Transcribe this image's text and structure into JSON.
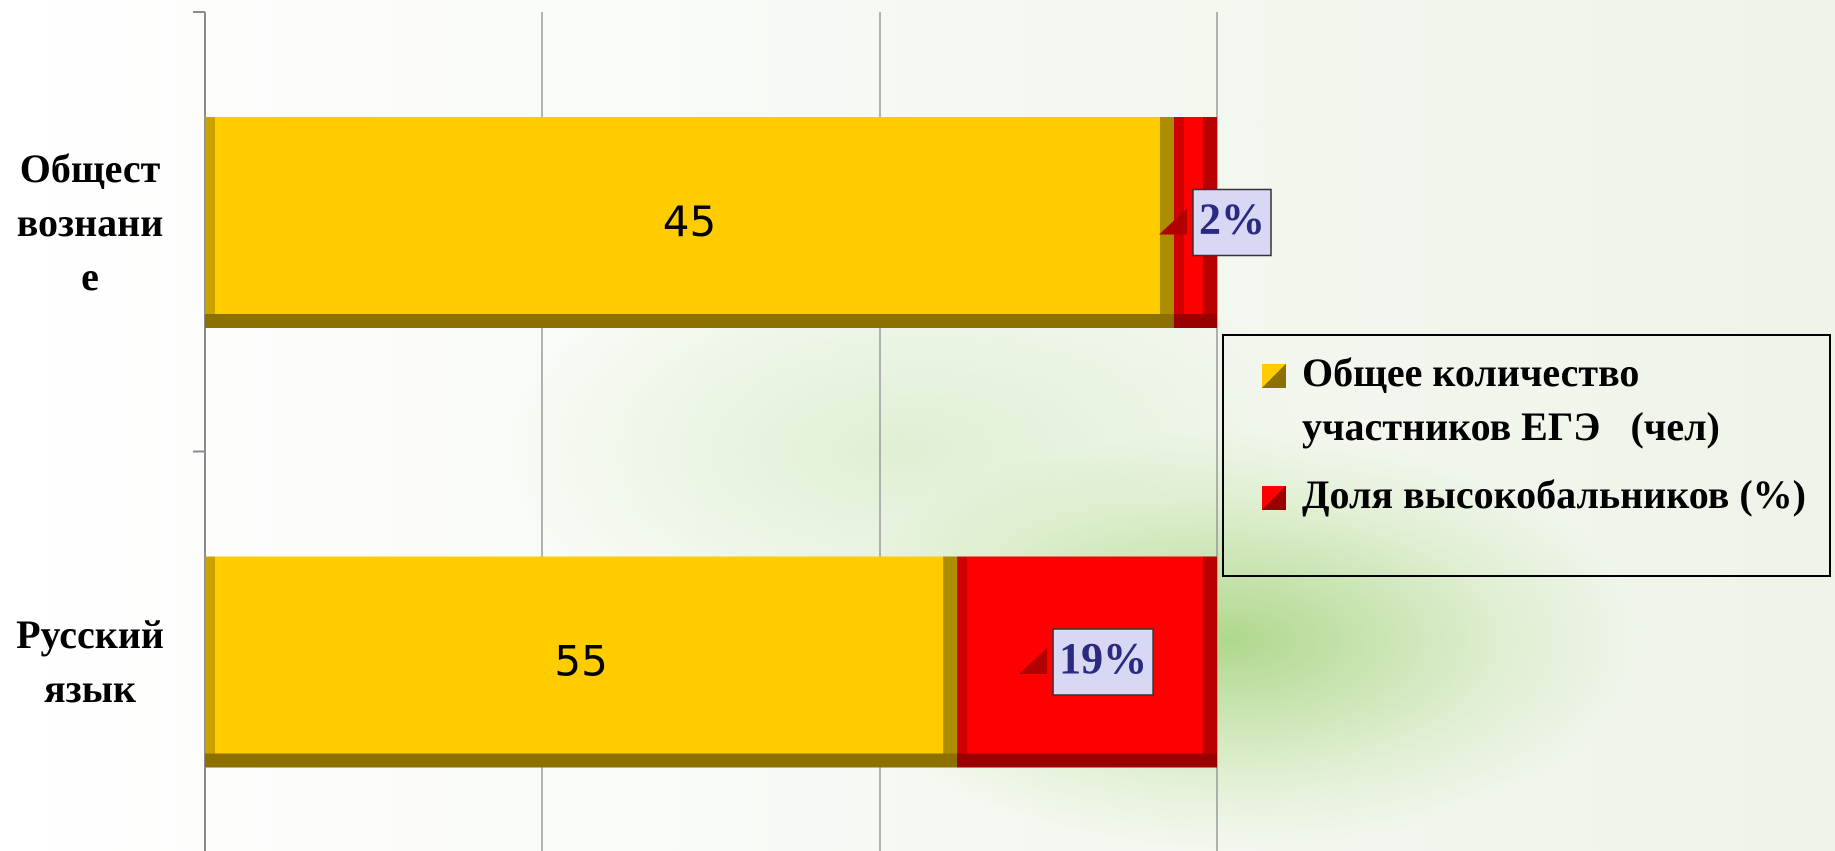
{
  "chart_data": {
    "type": "bar",
    "orientation": "horizontal",
    "stacked": "percent",
    "categories": [
      "Обществознание",
      "Русский язык"
    ],
    "series": [
      {
        "name": "Общее количество участников ЕГЭ   (чел)",
        "color": "#ffcc00",
        "values": [
          45,
          55
        ]
      },
      {
        "name": "Доля высокобальников (%)",
        "color": "#ff0000",
        "values": [
          2,
          19
        ],
        "value_labels": [
          "2%",
          "19%"
        ]
      }
    ],
    "xlim": [
      0,
      100
    ],
    "xticks": [
      0,
      33.3,
      66.7,
      100
    ],
    "grid": true,
    "legend": "right"
  }
}
